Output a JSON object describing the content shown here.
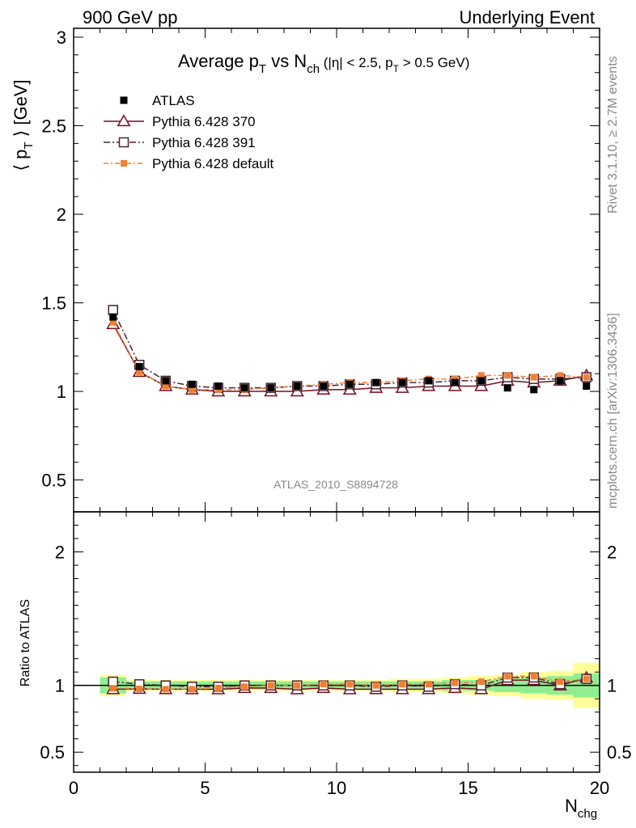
{
  "header": {
    "left": "900 GeV pp",
    "right": "Underlying Event"
  },
  "title": {
    "main": "Average p",
    "main_sub": "T",
    "vs": " vs N",
    "vs_sub": "ch",
    "cut_a": " (|η| < 2.5, p",
    "cut_sub": "T",
    "cut_b": " > 0.5 GeV)"
  },
  "ylabel": {
    "open": "⟨ p",
    "sub": "T",
    "close": " ⟩ [GeV]"
  },
  "ratio_ylabel": "Ratio to ATLAS",
  "xlabel": {
    "main": "N",
    "sub": "chg"
  },
  "side_text": {
    "rivet": "Rivet 3.1.10, ≥ 2.7M events",
    "mcplots": "mcplots.cern.ch [arXiv:1306.3436]"
  },
  "analysis_tag": "ATLAS_2010_S8894728",
  "legend": [
    {
      "label": "ATLAS",
      "color": "#000000",
      "marker": "filled-square"
    },
    {
      "label": "Pythia 6.428 370",
      "color": "#7a0c1e",
      "marker": "open-triangle"
    },
    {
      "label": "Pythia 6.428 391",
      "color": "#4a2230",
      "marker": "open-square"
    },
    {
      "label": "Pythia 6.428 default",
      "color": "#f07f33",
      "marker": "filled-square-small"
    }
  ],
  "chart_data": {
    "type": "line",
    "x": [
      1.5,
      2.5,
      3.5,
      4.5,
      5.5,
      6.5,
      7.5,
      8.5,
      9.5,
      10.5,
      11.5,
      12.5,
      13.5,
      14.5,
      15.5,
      16.5,
      17.5,
      18.5,
      19.5
    ],
    "xlim": [
      0,
      20
    ],
    "xticks": [
      "0",
      "5",
      "10",
      "15",
      "20"
    ],
    "main_ylim": [
      0.32,
      3.05
    ],
    "main_yticks": [
      "0.5",
      "1",
      "1.5",
      "2",
      "2.5",
      "3"
    ],
    "ratio_ylim": [
      0.35,
      2.3
    ],
    "ratio_yticks": [
      "0.5",
      "1",
      "2"
    ],
    "series": [
      {
        "name": "ATLAS",
        "values": [
          1.42,
          1.14,
          1.06,
          1.04,
          1.03,
          1.02,
          1.02,
          1.03,
          1.03,
          1.04,
          1.05,
          1.05,
          1.06,
          1.05,
          1.06,
          1.02,
          1.01,
          1.06,
          1.03
        ]
      },
      {
        "name": "Pythia 6.428 370",
        "values": [
          1.38,
          1.11,
          1.03,
          1.01,
          1.0,
          1.0,
          1.0,
          1.0,
          1.01,
          1.01,
          1.02,
          1.02,
          1.03,
          1.03,
          1.03,
          1.06,
          1.05,
          1.06,
          1.09
        ]
      },
      {
        "name": "Pythia 6.428 391",
        "values": [
          1.46,
          1.15,
          1.06,
          1.03,
          1.02,
          1.02,
          1.02,
          1.03,
          1.03,
          1.04,
          1.04,
          1.05,
          1.05,
          1.06,
          1.06,
          1.08,
          1.07,
          1.07,
          1.08
        ]
      },
      {
        "name": "Pythia 6.428 default",
        "values": [
          1.39,
          1.11,
          1.03,
          1.01,
          1.01,
          1.01,
          1.02,
          1.03,
          1.04,
          1.05,
          1.05,
          1.06,
          1.07,
          1.07,
          1.09,
          1.09,
          1.08,
          1.09,
          1.08
        ]
      }
    ],
    "ratio_band_inner": [
      0.06,
      0.03,
      0.03,
      0.03,
      0.03,
      0.03,
      0.03,
      0.03,
      0.03,
      0.03,
      0.03,
      0.03,
      0.03,
      0.04,
      0.04,
      0.05,
      0.06,
      0.07,
      0.09
    ],
    "ratio_band_outer": [
      0.08,
      0.04,
      0.04,
      0.04,
      0.04,
      0.04,
      0.04,
      0.04,
      0.04,
      0.04,
      0.04,
      0.05,
      0.05,
      0.06,
      0.07,
      0.08,
      0.1,
      0.11,
      0.17
    ],
    "band_colors": {
      "inner": "#90ee90",
      "outer": "#ffff99"
    }
  }
}
